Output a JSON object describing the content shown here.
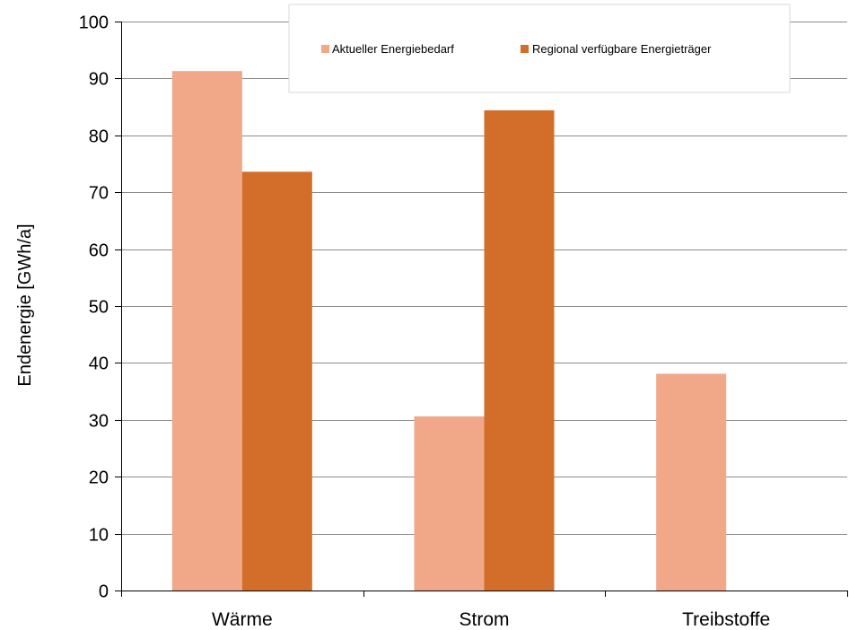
{
  "chart_data": {
    "type": "bar",
    "title": "",
    "xlabel": "",
    "ylabel": "Endenergie [GWh/a]",
    "categories": [
      "Wärme",
      "Strom",
      "Treibstoffe"
    ],
    "series": [
      {
        "name": "Aktueller Energiebedarf",
        "color": "#F0A888",
        "values": [
          91.3,
          30.6,
          38.1
        ]
      },
      {
        "name": "Regional verfügbare Energieträger",
        "color": "#D36E2A",
        "values": [
          73.6,
          84.4,
          0
        ]
      }
    ],
    "ylim": [
      0,
      100
    ],
    "yticks": [
      0,
      10,
      20,
      30,
      40,
      50,
      60,
      70,
      80,
      90,
      100
    ],
    "grid": true,
    "legend_position": "top"
  }
}
